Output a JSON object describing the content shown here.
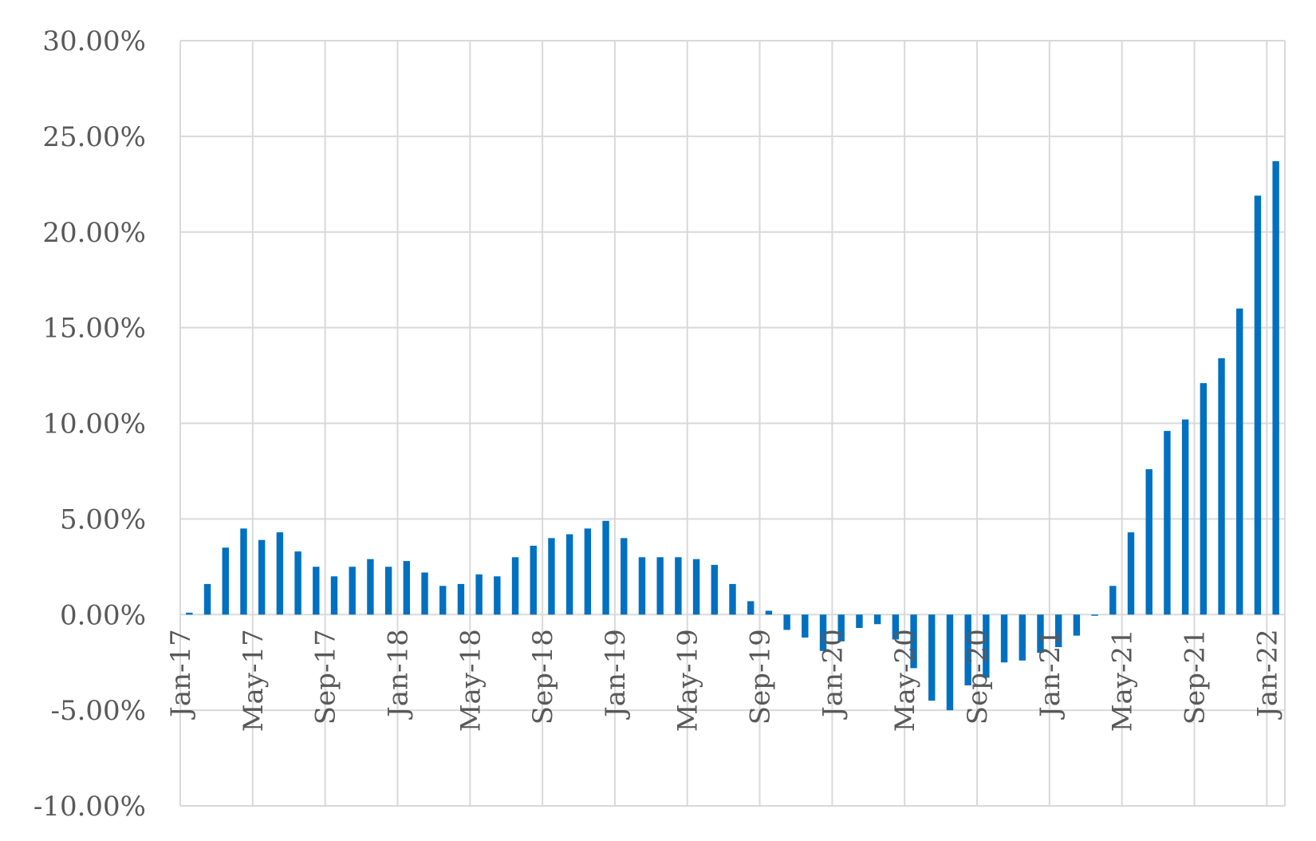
{
  "chart_data": {
    "type": "bar",
    "title": "",
    "xlabel": "",
    "ylabel": "",
    "ylim": [
      -10,
      30
    ],
    "ytick_values": [
      -10,
      -5,
      0,
      5,
      10,
      15,
      20,
      25,
      30
    ],
    "ytick_labels": [
      "-10.00%",
      "-5.00%",
      "0.00%",
      "5.00%",
      "10.00%",
      "15.00%",
      "20.00%",
      "25.00%",
      "30.00%"
    ],
    "xtick_labels": [
      {
        "label": "Jan-17",
        "index": 0
      },
      {
        "label": "May-17",
        "index": 4
      },
      {
        "label": "Sep-17",
        "index": 8
      },
      {
        "label": "Jan-18",
        "index": 12
      },
      {
        "label": "May-18",
        "index": 16
      },
      {
        "label": "Sep-18",
        "index": 20
      },
      {
        "label": "Jan-19",
        "index": 24
      },
      {
        "label": "May-19",
        "index": 28
      },
      {
        "label": "Sep-19",
        "index": 32
      },
      {
        "label": "Jan-20",
        "index": 36
      },
      {
        "label": "May-20",
        "index": 40
      },
      {
        "label": "Sep-20",
        "index": 44
      },
      {
        "label": "Jan-21",
        "index": 48
      },
      {
        "label": "May-21",
        "index": 52
      },
      {
        "label": "Sep-21",
        "index": 56
      },
      {
        "label": "Jan-22",
        "index": 60
      }
    ],
    "grid": true,
    "legend": "none",
    "color": "#0070c0",
    "categories": [
      "Jan-17",
      "Feb-17",
      "Mar-17",
      "Apr-17",
      "May-17",
      "Jun-17",
      "Jul-17",
      "Aug-17",
      "Sep-17",
      "Oct-17",
      "Nov-17",
      "Dec-17",
      "Jan-18",
      "Feb-18",
      "Mar-18",
      "Apr-18",
      "May-18",
      "Jun-18",
      "Jul-18",
      "Aug-18",
      "Sep-18",
      "Oct-18",
      "Nov-18",
      "Dec-18",
      "Jan-19",
      "Feb-19",
      "Mar-19",
      "Apr-19",
      "May-19",
      "Jun-19",
      "Jul-19",
      "Aug-19",
      "Sep-19",
      "Oct-19",
      "Nov-19",
      "Dec-19",
      "Jan-20",
      "Feb-20",
      "Mar-20",
      "Apr-20",
      "May-20",
      "Jun-20",
      "Jul-20",
      "Aug-20",
      "Sep-20",
      "Oct-20",
      "Nov-20",
      "Dec-20",
      "Jan-21",
      "Feb-21",
      "Mar-21",
      "Apr-21",
      "May-21",
      "Jun-21",
      "Jul-21",
      "Aug-21",
      "Sep-21",
      "Oct-21",
      "Nov-21",
      "Dec-21",
      "Jan-22"
    ],
    "values": [
      0.1,
      1.6,
      3.5,
      4.5,
      3.9,
      4.3,
      3.3,
      2.5,
      2.0,
      2.5,
      2.9,
      2.5,
      2.8,
      2.2,
      1.5,
      1.6,
      2.1,
      2.0,
      3.0,
      3.6,
      4.0,
      4.2,
      4.5,
      4.9,
      4.0,
      3.0,
      3.0,
      3.0,
      2.9,
      2.6,
      1.6,
      0.7,
      0.2,
      -0.8,
      -1.2,
      -1.9,
      -1.4,
      -0.7,
      -0.5,
      -1.3,
      -2.8,
      -4.5,
      -5.0,
      -3.7,
      -3.3,
      -2.5,
      -2.4,
      -2.0,
      -1.7,
      -1.1,
      0.0,
      1.5,
      4.3,
      7.6,
      9.6,
      10.2,
      12.1,
      13.4,
      16.0,
      21.9,
      23.7
    ]
  }
}
